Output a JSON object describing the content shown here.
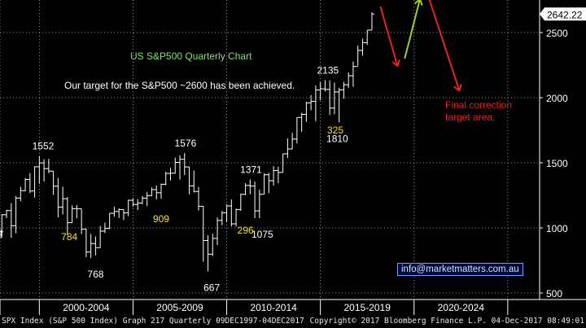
{
  "colors": {
    "background": "#000000",
    "bars": "#ffffff",
    "grid": "#bfbfbf",
    "white_labels": "#ffffff",
    "yellow_labels": "#f2e21a",
    "title": "#7ee36f",
    "red_annotation": "#e8202a",
    "green_arrow": "#9bd21f",
    "last_price_box": "#ffffff"
  },
  "annotations": {
    "title": "US S&P500 Quarterly Chart",
    "target_text": "Our target for the S&P500 ~2600 has been achieved.",
    "final_correction": "Final correction target area.",
    "email": "info@marketmatters.com.au",
    "last_price": "2642.22"
  },
  "footer": {
    "left": "SPX Index (S&P 500 Index) Graph 217  Quarterly 09DEC1997-04DEC2017",
    "right": "Copyright© 2017 Bloomberg Finance L.P.  04-Dec-2017 08:49:01"
  },
  "chart_data": {
    "type": "ohlc",
    "y_ticks": [
      500,
      1000,
      1500,
      2000,
      2500
    ],
    "x_ticks": [
      "2000-2004",
      "2005-2009",
      "2010-2014",
      "2015-2019",
      "2020-2024"
    ],
    "ylim": [
      450,
      2750
    ],
    "xlim": [
      1997.9,
      2026.7
    ],
    "x_period_starts": [
      1997.9,
      2000,
      2005,
      2010,
      2015,
      2020,
      2025
    ],
    "grid": true,
    "y_axis_position": "right",
    "point_labels": [
      {
        "text": "1552",
        "x": 2000.2,
        "y": 1552,
        "color": "white"
      },
      {
        "text": "784",
        "x": 2001.6,
        "y": 784,
        "color": "yellow"
      },
      {
        "text": "768",
        "x": 2003.0,
        "y": 768,
        "color": "white"
      },
      {
        "text": "909",
        "x": 2006.5,
        "y": 909,
        "color": "yellow"
      },
      {
        "text": "1576",
        "x": 2007.8,
        "y": 1576,
        "color": "white"
      },
      {
        "text": "667",
        "x": 2009.2,
        "y": 667,
        "color": "white"
      },
      {
        "text": "1371",
        "x": 2011.3,
        "y": 1371,
        "color": "white"
      },
      {
        "text": "296",
        "x": 2011.0,
        "y": 296,
        "color": "yellow"
      },
      {
        "text": "1075",
        "x": 2011.9,
        "y": 1075,
        "color": "white"
      },
      {
        "text": "2135",
        "x": 2015.4,
        "y": 2135,
        "color": "white"
      },
      {
        "text": "325",
        "x": 2015.8,
        "y": 325,
        "color": "yellow"
      },
      {
        "text": "1810",
        "x": 2015.9,
        "y": 1810,
        "color": "white"
      }
    ],
    "arrows": [
      {
        "color": "red",
        "from": [
          2018.2,
          2700
        ],
        "to": [
          2019.1,
          2250
        ]
      },
      {
        "color": "green",
        "from": [
          2019.5,
          2300
        ],
        "to": [
          2020.3,
          2750
        ]
      },
      {
        "color": "red",
        "from": [
          2020.8,
          2760
        ],
        "to": [
          2022.4,
          2060
        ]
      }
    ],
    "series": [
      {
        "quarter": "Q4 1997",
        "x": 1997.95,
        "o": 950,
        "h": 987,
        "l": 920,
        "c": 970
      },
      {
        "quarter": "Q1 1998",
        "x": 1998.0,
        "o": 970,
        "h": 1105,
        "l": 927,
        "c": 1101
      },
      {
        "quarter": "Q2 1998",
        "x": 1998.25,
        "o": 1101,
        "h": 1138,
        "l": 1075,
        "c": 1133
      },
      {
        "quarter": "Q3 1998",
        "x": 1998.5,
        "o": 1133,
        "h": 1190,
        "l": 923,
        "c": 1017
      },
      {
        "quarter": "Q4 1998",
        "x": 1998.75,
        "o": 1017,
        "h": 1244,
        "l": 959,
        "c": 1229
      },
      {
        "quarter": "Q1 1999",
        "x": 1999.0,
        "o": 1229,
        "h": 1316,
        "l": 1205,
        "c": 1286
      },
      {
        "quarter": "Q2 1999",
        "x": 1999.25,
        "o": 1286,
        "h": 1383,
        "l": 1281,
        "c": 1372
      },
      {
        "quarter": "Q3 1999",
        "x": 1999.5,
        "o": 1372,
        "h": 1420,
        "l": 1268,
        "c": 1283
      },
      {
        "quarter": "Q4 1999",
        "x": 1999.75,
        "o": 1283,
        "h": 1473,
        "l": 1233,
        "c": 1469
      },
      {
        "quarter": "Q1 2000",
        "x": 2000.0,
        "o": 1469,
        "h": 1552,
        "l": 1339,
        "c": 1499
      },
      {
        "quarter": "Q2 2000",
        "x": 2000.25,
        "o": 1499,
        "h": 1527,
        "l": 1356,
        "c": 1455
      },
      {
        "quarter": "Q3 2000",
        "x": 2000.5,
        "o": 1455,
        "h": 1530,
        "l": 1420,
        "c": 1436
      },
      {
        "quarter": "Q4 2000",
        "x": 2000.75,
        "o": 1436,
        "h": 1436,
        "l": 1254,
        "c": 1320
      },
      {
        "quarter": "Q1 2001",
        "x": 2001.0,
        "o": 1320,
        "h": 1383,
        "l": 1081,
        "c": 1160
      },
      {
        "quarter": "Q2 2001",
        "x": 2001.25,
        "o": 1160,
        "h": 1316,
        "l": 1103,
        "c": 1224
      },
      {
        "quarter": "Q3 2001",
        "x": 2001.5,
        "o": 1224,
        "h": 1236,
        "l": 944,
        "c": 1040
      },
      {
        "quarter": "Q4 2001",
        "x": 2001.75,
        "o": 1040,
        "h": 1173,
        "l": 1040,
        "c": 1148
      },
      {
        "quarter": "Q1 2002",
        "x": 2002.0,
        "o": 1148,
        "h": 1176,
        "l": 1074,
        "c": 1147
      },
      {
        "quarter": "Q2 2002",
        "x": 2002.25,
        "o": 1147,
        "h": 1147,
        "l": 953,
        "c": 990
      },
      {
        "quarter": "Q3 2002",
        "x": 2002.5,
        "o": 990,
        "h": 994,
        "l": 775,
        "c": 815
      },
      {
        "quarter": "Q4 2002",
        "x": 2002.75,
        "o": 815,
        "h": 954,
        "l": 768,
        "c": 880
      },
      {
        "quarter": "Q1 2003",
        "x": 2003.0,
        "o": 880,
        "h": 935,
        "l": 789,
        "c": 848
      },
      {
        "quarter": "Q2 2003",
        "x": 2003.25,
        "o": 848,
        "h": 1015,
        "l": 847,
        "c": 975
      },
      {
        "quarter": "Q3 2003",
        "x": 2003.5,
        "o": 975,
        "h": 1040,
        "l": 960,
        "c": 996
      },
      {
        "quarter": "Q4 2003",
        "x": 2003.75,
        "o": 996,
        "h": 1112,
        "l": 990,
        "c": 1112
      },
      {
        "quarter": "Q1 2004",
        "x": 2004.0,
        "o": 1112,
        "h": 1163,
        "l": 1087,
        "c": 1126
      },
      {
        "quarter": "Q2 2004",
        "x": 2004.25,
        "o": 1126,
        "h": 1150,
        "l": 1076,
        "c": 1141
      },
      {
        "quarter": "Q3 2004",
        "x": 2004.5,
        "o": 1141,
        "h": 1141,
        "l": 1060,
        "c": 1115
      },
      {
        "quarter": "Q4 2004",
        "x": 2004.75,
        "o": 1115,
        "h": 1217,
        "l": 1090,
        "c": 1212
      },
      {
        "quarter": "Q1 2005",
        "x": 2005.0,
        "o": 1212,
        "h": 1229,
        "l": 1163,
        "c": 1180
      },
      {
        "quarter": "Q2 2005",
        "x": 2005.25,
        "o": 1180,
        "h": 1219,
        "l": 1137,
        "c": 1191
      },
      {
        "quarter": "Q3 2005",
        "x": 2005.5,
        "o": 1191,
        "h": 1245,
        "l": 1183,
        "c": 1228
      },
      {
        "quarter": "Q4 2005",
        "x": 2005.75,
        "o": 1228,
        "h": 1275,
        "l": 1168,
        "c": 1248
      },
      {
        "quarter": "Q1 2006",
        "x": 2006.0,
        "o": 1248,
        "h": 1310,
        "l": 1245,
        "c": 1294
      },
      {
        "quarter": "Q2 2006",
        "x": 2006.25,
        "o": 1294,
        "h": 1326,
        "l": 1219,
        "c": 1270
      },
      {
        "quarter": "Q3 2006",
        "x": 2006.5,
        "o": 1270,
        "h": 1340,
        "l": 1224,
        "c": 1335
      },
      {
        "quarter": "Q4 2006",
        "x": 2006.75,
        "o": 1335,
        "h": 1431,
        "l": 1327,
        "c": 1418
      },
      {
        "quarter": "Q1 2007",
        "x": 2007.0,
        "o": 1418,
        "h": 1461,
        "l": 1364,
        "c": 1420
      },
      {
        "quarter": "Q2 2007",
        "x": 2007.25,
        "o": 1420,
        "h": 1540,
        "l": 1416,
        "c": 1503
      },
      {
        "quarter": "Q3 2007",
        "x": 2007.5,
        "o": 1503,
        "h": 1556,
        "l": 1371,
        "c": 1527
      },
      {
        "quarter": "Q4 2007",
        "x": 2007.75,
        "o": 1527,
        "h": 1576,
        "l": 1406,
        "c": 1468
      },
      {
        "quarter": "Q1 2008",
        "x": 2008.0,
        "o": 1468,
        "h": 1471,
        "l": 1257,
        "c": 1323
      },
      {
        "quarter": "Q2 2008",
        "x": 2008.25,
        "o": 1323,
        "h": 1440,
        "l": 1272,
        "c": 1280
      },
      {
        "quarter": "Q3 2008",
        "x": 2008.5,
        "o": 1280,
        "h": 1314,
        "l": 1133,
        "c": 1166
      },
      {
        "quarter": "Q4 2008",
        "x": 2008.75,
        "o": 1166,
        "h": 1167,
        "l": 741,
        "c": 903
      },
      {
        "quarter": "Q1 2009",
        "x": 2009.0,
        "o": 903,
        "h": 943,
        "l": 667,
        "c": 798
      },
      {
        "quarter": "Q2 2009",
        "x": 2009.25,
        "o": 798,
        "h": 956,
        "l": 784,
        "c": 919
      },
      {
        "quarter": "Q3 2009",
        "x": 2009.5,
        "o": 919,
        "h": 1080,
        "l": 869,
        "c": 1057
      },
      {
        "quarter": "Q4 2009",
        "x": 2009.75,
        "o": 1057,
        "h": 1130,
        "l": 1020,
        "c": 1115
      },
      {
        "quarter": "Q1 2010",
        "x": 2010.0,
        "o": 1115,
        "h": 1180,
        "l": 1044,
        "c": 1169
      },
      {
        "quarter": "Q2 2010",
        "x": 2010.25,
        "o": 1169,
        "h": 1219,
        "l": 1011,
        "c": 1031
      },
      {
        "quarter": "Q3 2010",
        "x": 2010.5,
        "o": 1031,
        "h": 1148,
        "l": 1011,
        "c": 1141
      },
      {
        "quarter": "Q4 2010",
        "x": 2010.75,
        "o": 1141,
        "h": 1262,
        "l": 1131,
        "c": 1258
      },
      {
        "quarter": "Q1 2011",
        "x": 2011.0,
        "o": 1258,
        "h": 1344,
        "l": 1249,
        "c": 1326
      },
      {
        "quarter": "Q2 2011",
        "x": 2011.25,
        "o": 1326,
        "h": 1371,
        "l": 1258,
        "c": 1321
      },
      {
        "quarter": "Q3 2011",
        "x": 2011.5,
        "o": 1321,
        "h": 1356,
        "l": 1075,
        "c": 1131
      },
      {
        "quarter": "Q4 2011",
        "x": 2011.75,
        "o": 1131,
        "h": 1293,
        "l": 1075,
        "c": 1258
      },
      {
        "quarter": "Q1 2012",
        "x": 2012.0,
        "o": 1258,
        "h": 1420,
        "l": 1258,
        "c": 1408
      },
      {
        "quarter": "Q2 2012",
        "x": 2012.25,
        "o": 1408,
        "h": 1422,
        "l": 1267,
        "c": 1362
      },
      {
        "quarter": "Q3 2012",
        "x": 2012.5,
        "o": 1362,
        "h": 1474,
        "l": 1325,
        "c": 1441
      },
      {
        "quarter": "Q4 2012",
        "x": 2012.75,
        "o": 1441,
        "h": 1470,
        "l": 1343,
        "c": 1426
      },
      {
        "quarter": "Q1 2013",
        "x": 2013.0,
        "o": 1426,
        "h": 1570,
        "l": 1426,
        "c": 1569
      },
      {
        "quarter": "Q2 2013",
        "x": 2013.25,
        "o": 1569,
        "h": 1687,
        "l": 1536,
        "c": 1606
      },
      {
        "quarter": "Q3 2013",
        "x": 2013.5,
        "o": 1606,
        "h": 1730,
        "l": 1604,
        "c": 1682
      },
      {
        "quarter": "Q4 2013",
        "x": 2013.75,
        "o": 1682,
        "h": 1849,
        "l": 1647,
        "c": 1848
      },
      {
        "quarter": "Q1 2014",
        "x": 2014.0,
        "o": 1848,
        "h": 1884,
        "l": 1738,
        "c": 1872
      },
      {
        "quarter": "Q2 2014",
        "x": 2014.25,
        "o": 1872,
        "h": 1968,
        "l": 1814,
        "c": 1960
      },
      {
        "quarter": "Q3 2014",
        "x": 2014.5,
        "o": 1960,
        "h": 2019,
        "l": 1904,
        "c": 1972
      },
      {
        "quarter": "Q4 2014",
        "x": 2014.75,
        "o": 1972,
        "h": 2093,
        "l": 1820,
        "c": 2059
      },
      {
        "quarter": "Q1 2015",
        "x": 2015.0,
        "o": 2059,
        "h": 2119,
        "l": 1981,
        "c": 2068
      },
      {
        "quarter": "Q2 2015",
        "x": 2015.25,
        "o": 2068,
        "h": 2135,
        "l": 2048,
        "c": 2063
      },
      {
        "quarter": "Q3 2015",
        "x": 2015.5,
        "o": 2063,
        "h": 2133,
        "l": 1867,
        "c": 1920
      },
      {
        "quarter": "Q4 2015",
        "x": 2015.75,
        "o": 1920,
        "h": 2116,
        "l": 1872,
        "c": 2044
      },
      {
        "quarter": "Q1 2016",
        "x": 2016.0,
        "o": 2044,
        "h": 2076,
        "l": 1810,
        "c": 2060
      },
      {
        "quarter": "Q2 2016",
        "x": 2016.25,
        "o": 2060,
        "h": 2121,
        "l": 1992,
        "c": 2099
      },
      {
        "quarter": "Q3 2016",
        "x": 2016.5,
        "o": 2099,
        "h": 2194,
        "l": 2074,
        "c": 2168
      },
      {
        "quarter": "Q4 2016",
        "x": 2016.75,
        "o": 2168,
        "h": 2278,
        "l": 2084,
        "c": 2239
      },
      {
        "quarter": "Q1 2017",
        "x": 2017.0,
        "o": 2239,
        "h": 2401,
        "l": 2245,
        "c": 2363
      },
      {
        "quarter": "Q2 2017",
        "x": 2017.25,
        "o": 2363,
        "h": 2454,
        "l": 2322,
        "c": 2423
      },
      {
        "quarter": "Q3 2017",
        "x": 2017.5,
        "o": 2423,
        "h": 2519,
        "l": 2405,
        "c": 2519
      },
      {
        "quarter": "Q4 2017",
        "x": 2017.75,
        "o": 2519,
        "h": 2657,
        "l": 2520,
        "c": 2642
      }
    ]
  }
}
